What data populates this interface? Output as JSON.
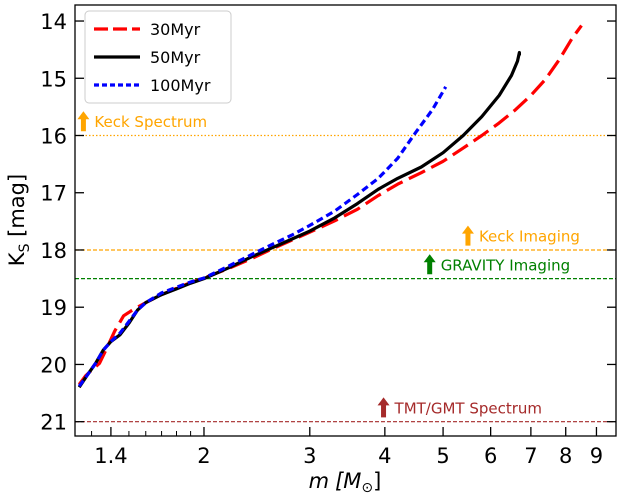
{
  "chart_data": {
    "type": "line",
    "xlabel": "m [M⊙]",
    "xlabel_italic": "m",
    "xlabel_unit": "[M",
    "xlabel_sub": "⊙",
    "xlabel_close": "]",
    "ylabel": "Ks [mag]",
    "ylabel_main": "K",
    "ylabel_sub": "S",
    "ylabel_unit": " [mag]",
    "x_scale": "log",
    "xlim": [
      1.22,
      9.7
    ],
    "ylim": [
      21.25,
      13.72
    ],
    "y_inverted": true,
    "x_ticks": [
      1.4,
      2,
      3,
      4,
      5,
      6,
      7,
      8,
      9
    ],
    "x_tick_labels": [
      "1.4",
      "2",
      "3",
      "4",
      "5",
      "6",
      "7",
      "8",
      "9"
    ],
    "y_ticks": [
      14,
      15,
      16,
      17,
      18,
      19,
      20,
      21
    ],
    "y_tick_labels": [
      "14",
      "15",
      "16",
      "17",
      "18",
      "19",
      "20",
      "21"
    ],
    "grid": false,
    "legend_position": "top-left",
    "series": [
      {
        "name": "30Myr",
        "color": "#ff0000",
        "dash": "dashed",
        "x": [
          1.24,
          1.27,
          1.3,
          1.34,
          1.38,
          1.42,
          1.47,
          1.52,
          1.6,
          1.7,
          1.8,
          1.9,
          2.0,
          2.2,
          2.4,
          2.6,
          2.8,
          3.0,
          3.3,
          3.6,
          3.9,
          4.2,
          4.6,
          5.0,
          5.4,
          5.8,
          6.2,
          6.6,
          7.0,
          7.4,
          7.8,
          8.2,
          8.5
        ],
        "y": [
          20.35,
          20.2,
          20.1,
          19.98,
          19.7,
          19.42,
          19.15,
          19.05,
          18.92,
          18.78,
          18.67,
          18.57,
          18.49,
          18.32,
          18.15,
          17.98,
          17.83,
          17.69,
          17.49,
          17.29,
          17.05,
          16.85,
          16.65,
          16.45,
          16.22,
          16.0,
          15.78,
          15.55,
          15.3,
          15.02,
          14.68,
          14.3,
          14.08
        ]
      },
      {
        "name": "50Myr",
        "color": "#000000",
        "dash": "solid",
        "x": [
          1.24,
          1.28,
          1.32,
          1.36,
          1.4,
          1.45,
          1.5,
          1.55,
          1.6,
          1.7,
          1.8,
          1.9,
          2.0,
          2.2,
          2.4,
          2.6,
          2.8,
          3.0,
          3.3,
          3.6,
          3.9,
          4.2,
          4.6,
          5.0,
          5.4,
          5.8,
          6.2,
          6.5,
          6.65,
          6.7,
          6.7
        ],
        "y": [
          20.4,
          20.18,
          19.98,
          19.75,
          19.6,
          19.48,
          19.28,
          19.05,
          18.92,
          18.78,
          18.68,
          18.58,
          18.5,
          18.31,
          18.12,
          17.96,
          17.81,
          17.67,
          17.44,
          17.19,
          16.94,
          16.75,
          16.55,
          16.3,
          16.0,
          15.67,
          15.3,
          14.95,
          14.7,
          14.55,
          14.6
        ]
      },
      {
        "name": "100Myr",
        "color": "#0000ff",
        "dash": "dotted",
        "x": [
          1.24,
          1.28,
          1.32,
          1.36,
          1.4,
          1.45,
          1.5,
          1.55,
          1.6,
          1.7,
          1.8,
          1.9,
          2.0,
          2.2,
          2.4,
          2.6,
          2.8,
          3.0,
          3.3,
          3.6,
          3.9,
          4.2,
          4.5,
          4.8,
          5.0,
          5.05
        ],
        "y": [
          20.38,
          20.18,
          19.98,
          19.75,
          19.6,
          19.45,
          19.25,
          19.05,
          18.92,
          18.75,
          18.65,
          18.56,
          18.49,
          18.28,
          18.08,
          17.9,
          17.74,
          17.57,
          17.32,
          17.03,
          16.75,
          16.4,
          15.95,
          15.55,
          15.23,
          15.15
        ]
      }
    ],
    "hlines": [
      {
        "y": 16.0,
        "color": "#ffa500",
        "style": "dotted"
      },
      {
        "y": 18.0,
        "color": "#ffa500",
        "style": "dashed"
      },
      {
        "y": 18.5,
        "color": "#008000",
        "style": "dashed"
      },
      {
        "y": 21.0,
        "color": "#a52a2a",
        "style": "dashed"
      }
    ],
    "annotations": [
      {
        "text": "Keck Spectrum",
        "color": "#ffa500",
        "x": 1.26,
        "y": 15.75
      },
      {
        "text": "Keck Imaging",
        "color": "#ffa500",
        "x": 5.5,
        "y": 17.75
      },
      {
        "text": "GRAVITY Imaging",
        "color": "#008000",
        "x": 4.75,
        "y": 18.25
      },
      {
        "text": "TMT/GMT Spectrum",
        "color": "#a52a2a",
        "x": 3.98,
        "y": 20.75
      }
    ]
  }
}
